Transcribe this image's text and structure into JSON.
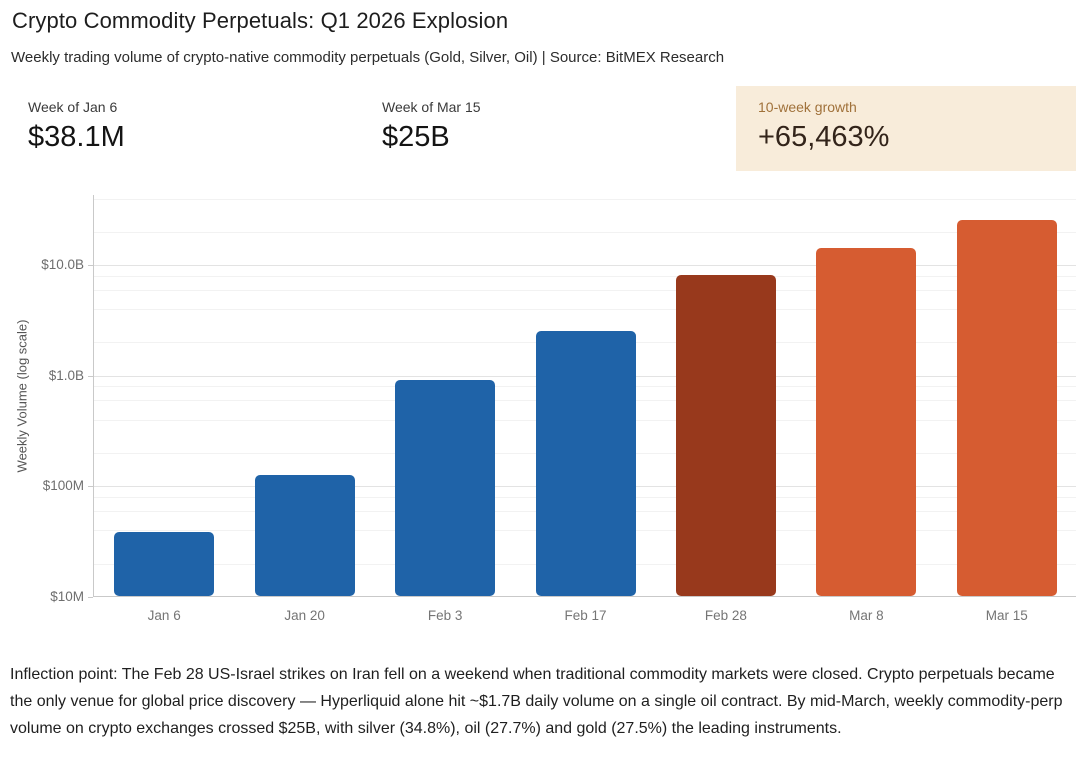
{
  "header": {
    "title": "Crypto Commodity Perpetuals: Q1 2026 Explosion",
    "subtitle": "Weekly trading volume of crypto-native commodity perpetuals (Gold, Silver, Oil) | Source: BitMEX Research"
  },
  "stats": [
    {
      "label": "Week of Jan 6",
      "value": "$38.1M"
    },
    {
      "label": "Week of Mar 15",
      "value": "$25B"
    },
    {
      "label": "10-week growth",
      "value": "+65,463%"
    }
  ],
  "colors": {
    "bar_blue": "#1f63a8",
    "bar_dark_red": "#98391c",
    "bar_orange": "#d65c31",
    "highlight_bg": "#f8ecda",
    "highlight_label_text": "#a0713a",
    "highlight_value_text": "#33241a",
    "major_gridline": "#e3e3e3",
    "minor_gridline": "#f2f2f2",
    "axis_line": "#c9c9c9"
  },
  "chart_data": {
    "type": "bar",
    "title": "",
    "xlabel": "",
    "ylabel": "Weekly Volume (log scale)",
    "yscale": "log",
    "grid": true,
    "categories": [
      "Jan 6",
      "Jan 20",
      "Feb 3",
      "Feb 17",
      "Feb 28",
      "Mar 8",
      "Mar 15"
    ],
    "values": [
      38100000,
      125000000,
      900000000,
      2500000000,
      8000000000,
      14000000000,
      25000000000
    ],
    "bar_colors": [
      "#1f63a8",
      "#1f63a8",
      "#1f63a8",
      "#1f63a8",
      "#98391c",
      "#d65c31",
      "#d65c31"
    ],
    "ylim": [
      10000000,
      43000000000
    ],
    "yticks": [
      {
        "value": 10000000,
        "label": "$10M"
      },
      {
        "value": 100000000,
        "label": "$100M"
      },
      {
        "value": 1000000000,
        "label": "$1.0B"
      },
      {
        "value": 10000000000,
        "label": "$10.0B"
      }
    ],
    "minor_grid_subs": [
      2,
      4,
      6,
      8
    ]
  },
  "footer": {
    "text": "Inflection point: The Feb 28 US-Israel strikes on Iran fell on a weekend when traditional commodity markets were closed. Crypto perpetuals became the only venue for global price discovery — Hyperliquid alone hit ~$1.7B daily volume on a single oil contract. By mid-March, weekly commodity-perp volume on crypto exchanges crossed $25B, with silver (34.8%), oil (27.7%) and gold (27.5%) the leading instruments."
  }
}
